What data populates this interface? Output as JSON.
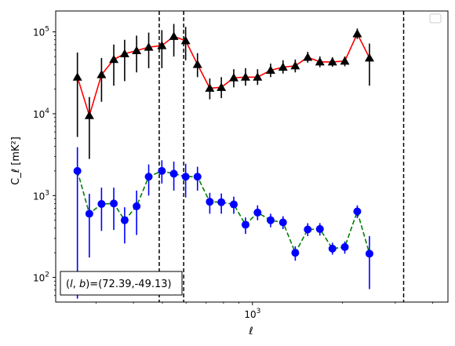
{
  "chart_data": {
    "type": "scatter",
    "title": "",
    "xlabel": "ℓ",
    "ylabel": "C_ℓ  [mK²]",
    "xscale": "log",
    "yscale": "log",
    "xlim": [
      220,
      4500
    ],
    "ylim": [
      50,
      180000
    ],
    "x_ticks": [
      {
        "value": 1000,
        "label": "10",
        "exp": "3"
      }
    ],
    "y_ticks": [
      {
        "value": 100,
        "label": "10",
        "exp": "2"
      },
      {
        "value": 1000,
        "label": "10",
        "exp": "3"
      },
      {
        "value": 10000,
        "label": "10",
        "exp": "4"
      },
      {
        "value": 100000,
        "label": "10",
        "exp": "5"
      }
    ],
    "legend": {
      "position": "top-right",
      "entries": []
    },
    "annotation": {
      "text": "(l, b)=(72.39,-49.13)",
      "position": "bottom-left"
    },
    "vlines": [
      488,
      589,
      3200
    ],
    "series": [
      {
        "color": "#ff0000",
        "marker": "triangle",
        "marker_color": "#000000",
        "errbar_color": "#000000",
        "linestyle": "solid",
        "points": [
          {
            "x": 260,
            "y": 28000,
            "lo": 5200,
            "hi": 56000
          },
          {
            "x": 285,
            "y": 9500,
            "lo": 2800,
            "hi": 16000
          },
          {
            "x": 313,
            "y": 30000,
            "lo": 14000,
            "hi": 48000
          },
          {
            "x": 344,
            "y": 46000,
            "lo": 22000,
            "hi": 70000
          },
          {
            "x": 374,
            "y": 54000,
            "lo": 25000,
            "hi": 80000
          },
          {
            "x": 410,
            "y": 59000,
            "lo": 32000,
            "hi": 90000
          },
          {
            "x": 450,
            "y": 65000,
            "lo": 36000,
            "hi": 98000
          },
          {
            "x": 498,
            "y": 68000,
            "lo": 36000,
            "hi": 105000
          },
          {
            "x": 546,
            "y": 88000,
            "lo": 50000,
            "hi": 125000
          },
          {
            "x": 598,
            "y": 78000,
            "lo": 45000,
            "hi": 115000
          },
          {
            "x": 655,
            "y": 40000,
            "lo": 28000,
            "hi": 55000
          },
          {
            "x": 720,
            "y": 20500,
            "lo": 15000,
            "hi": 27000
          },
          {
            "x": 787,
            "y": 21000,
            "lo": 15500,
            "hi": 28000
          },
          {
            "x": 866,
            "y": 27500,
            "lo": 21000,
            "hi": 35000
          },
          {
            "x": 948,
            "y": 28000,
            "lo": 22000,
            "hi": 36000
          },
          {
            "x": 1040,
            "y": 28000,
            "lo": 22500,
            "hi": 35000
          },
          {
            "x": 1150,
            "y": 34000,
            "lo": 28000,
            "hi": 41000
          },
          {
            "x": 1265,
            "y": 37000,
            "lo": 31000,
            "hi": 45000
          },
          {
            "x": 1390,
            "y": 38500,
            "lo": 32000,
            "hi": 46000
          },
          {
            "x": 1530,
            "y": 49000,
            "lo": 42000,
            "hi": 57000
          },
          {
            "x": 1680,
            "y": 43000,
            "lo": 37000,
            "hi": 50000
          },
          {
            "x": 1850,
            "y": 43000,
            "lo": 37500,
            "hi": 49000
          },
          {
            "x": 2035,
            "y": 44000,
            "lo": 38000,
            "hi": 50000
          },
          {
            "x": 2240,
            "y": 95000,
            "lo": 82000,
            "hi": 110000
          },
          {
            "x": 2460,
            "y": 48000,
            "lo": 22000,
            "hi": 72000
          }
        ]
      },
      {
        "color": "#008000",
        "marker": "circle",
        "marker_color": "#0000ff",
        "errbar_color": "#0000ff",
        "linestyle": "dashed",
        "points": [
          {
            "x": 260,
            "y": 2000,
            "lo": 55,
            "hi": 3900
          },
          {
            "x": 285,
            "y": 600,
            "lo": 175,
            "hi": 1050
          },
          {
            "x": 313,
            "y": 790,
            "lo": 370,
            "hi": 1250
          },
          {
            "x": 344,
            "y": 800,
            "lo": 380,
            "hi": 1250
          },
          {
            "x": 374,
            "y": 500,
            "lo": 260,
            "hi": 720
          },
          {
            "x": 410,
            "y": 740,
            "lo": 330,
            "hi": 1150
          },
          {
            "x": 450,
            "y": 1700,
            "lo": 1000,
            "hi": 2400
          },
          {
            "x": 498,
            "y": 2000,
            "lo": 1400,
            "hi": 2700
          },
          {
            "x": 546,
            "y": 1850,
            "lo": 1150,
            "hi": 2600
          },
          {
            "x": 598,
            "y": 1700,
            "lo": 950,
            "hi": 2450
          },
          {
            "x": 655,
            "y": 1700,
            "lo": 1150,
            "hi": 2250
          },
          {
            "x": 720,
            "y": 840,
            "lo": 600,
            "hi": 1080
          },
          {
            "x": 787,
            "y": 830,
            "lo": 600,
            "hi": 1060
          },
          {
            "x": 866,
            "y": 780,
            "lo": 600,
            "hi": 970
          },
          {
            "x": 948,
            "y": 440,
            "lo": 340,
            "hi": 540
          },
          {
            "x": 1040,
            "y": 620,
            "lo": 500,
            "hi": 760
          },
          {
            "x": 1150,
            "y": 500,
            "lo": 410,
            "hi": 600
          },
          {
            "x": 1265,
            "y": 470,
            "lo": 390,
            "hi": 560
          },
          {
            "x": 1390,
            "y": 200,
            "lo": 160,
            "hi": 240
          },
          {
            "x": 1530,
            "y": 385,
            "lo": 320,
            "hi": 460
          },
          {
            "x": 1680,
            "y": 390,
            "lo": 325,
            "hi": 460
          },
          {
            "x": 1850,
            "y": 225,
            "lo": 190,
            "hi": 265
          },
          {
            "x": 2035,
            "y": 235,
            "lo": 195,
            "hi": 275
          },
          {
            "x": 2240,
            "y": 640,
            "lo": 530,
            "hi": 760
          },
          {
            "x": 2460,
            "y": 195,
            "lo": 72,
            "hi": 320
          }
        ]
      }
    ]
  }
}
